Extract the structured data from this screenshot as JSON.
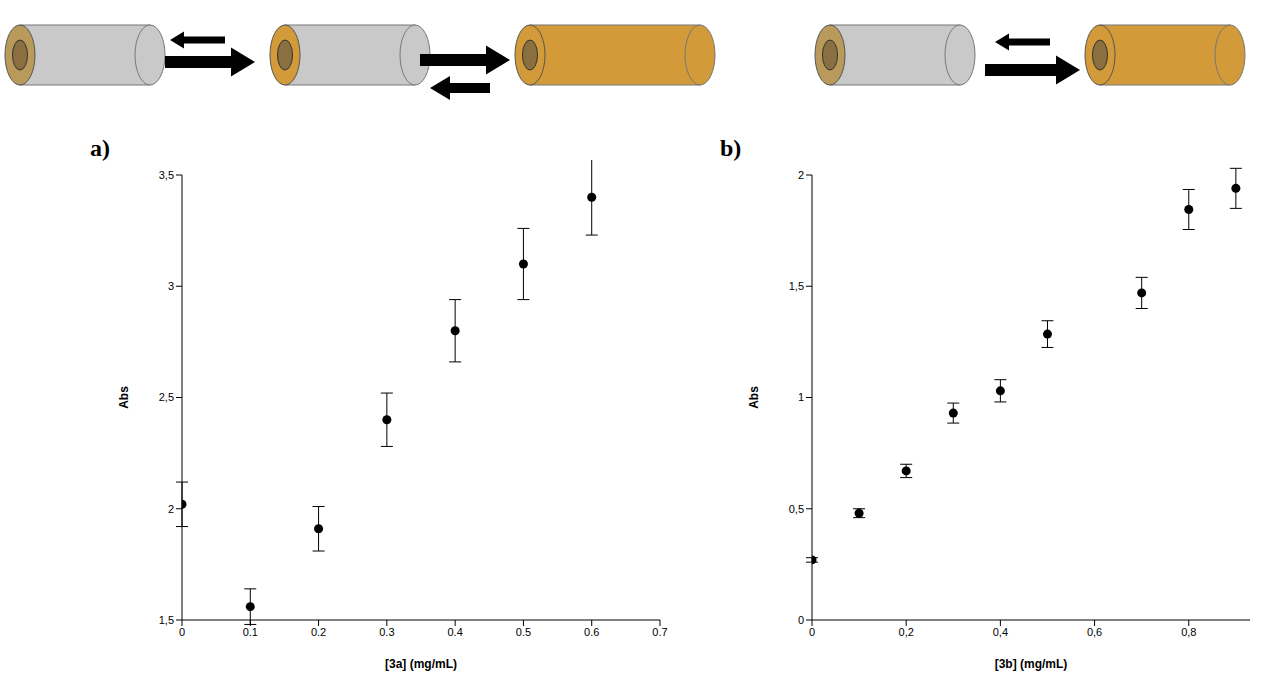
{
  "chart_data": [
    {
      "type": "scatter",
      "title": "a)",
      "x_label": "[3a] (mg/mL)",
      "y_label": "Abs",
      "x": [
        0,
        0.1,
        0.2,
        0.3,
        0.4,
        0.5,
        0.6
      ],
      "values": [
        2.02,
        1.56,
        1.91,
        2.4,
        2.8,
        3.1,
        3.4
      ],
      "errors": [
        0.1,
        0.08,
        0.1,
        0.12,
        0.14,
        0.16,
        0.17
      ],
      "xlim": [
        0,
        0.7
      ],
      "xticks": [
        0,
        0.1,
        0.2,
        0.3,
        0.4,
        0.5,
        0.6,
        0.7
      ],
      "ylim": [
        1.5,
        3.5
      ],
      "yticks": [
        {
          "value": 1.5,
          "label": "1,5"
        },
        2,
        {
          "value": 2.5,
          "label": "2,5"
        },
        3,
        {
          "value": 3.5,
          "label": "3,5"
        }
      ],
      "color": "#000000",
      "marker": "circle",
      "grid": false
    },
    {
      "type": "scatter",
      "title": "b)",
      "x_label": "[3b] (mg/mL)",
      "y_label": "Abs",
      "x": [
        0,
        0.1,
        0.2,
        0.3,
        0.4,
        0.5,
        0.7,
        0.8,
        0.9
      ],
      "values": [
        0.27,
        0.48,
        0.67,
        0.93,
        1.03,
        1.285,
        1.47,
        1.845,
        1.94
      ],
      "errors": [
        0.01,
        0.02,
        0.03,
        0.045,
        0.05,
        0.06,
        0.07,
        0.09,
        0.09
      ],
      "xlim": [
        0,
        0.93
      ],
      "xticks": [
        0,
        {
          "value": 0.2,
          "label": "0,2"
        },
        {
          "value": 0.4,
          "label": "0,4"
        },
        {
          "value": 0.6,
          "label": "0,6"
        },
        {
          "value": 0.8,
          "label": "0,8"
        }
      ],
      "ylim": [
        0,
        2
      ],
      "yticks": [
        0,
        {
          "value": 0.5,
          "label": "0,5"
        },
        1,
        {
          "value": 1.5,
          "label": "1,5"
        },
        2
      ],
      "color": "#000000",
      "marker": "circle",
      "grid": false
    }
  ]
}
